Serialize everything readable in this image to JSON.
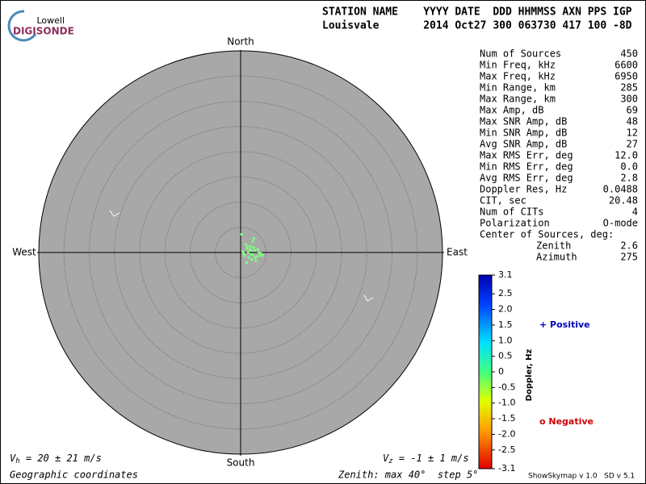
{
  "logo": {
    "top": "Lowell",
    "bottom": "DIGISONDE"
  },
  "header": {
    "columns": "STATION NAME    YYYY DATE  DDD HHMMSS AXN PPS IGP",
    "values": "Louisvale       2014 Oct27 300 063730 417 100 -8D"
  },
  "chart_data": {
    "type": "scatter",
    "directions": {
      "north": "North",
      "south": "South",
      "west": "West",
      "east": "East"
    },
    "zenith_max": 40,
    "ring_step": 5,
    "color": "#80ff80",
    "x": [
      0.4,
      0.8,
      1.2,
      1.6,
      2.0,
      2.4,
      2.8,
      3.2,
      3.6,
      4.0,
      1.0,
      1.5,
      2.2,
      2.6,
      3.0,
      1.8,
      2.4,
      3.4,
      0.6,
      2.0,
      2.8,
      1.4,
      3.8,
      2.2,
      0.2,
      4.4,
      2.6,
      1.2
    ],
    "y": [
      0.2,
      -0.6,
      0.8,
      -1.0,
      1.2,
      -0.4,
      0.4,
      -0.8,
      0.0,
      -0.2,
      1.6,
      0.0,
      -1.4,
      1.0,
      -1.6,
      0.6,
      2.2,
      0.6,
      -0.2,
      -0.4,
      -1.0,
      1.2,
      -0.6,
      0.4,
      3.6,
      -0.6,
      2.8,
      -2.0
    ]
  },
  "stats": [
    [
      "Num of Sources",
      "450"
    ],
    [
      "Min Freq, kHz",
      "6600"
    ],
    [
      "Max Freq, kHz",
      "6950"
    ],
    [
      "Min Range, km",
      "285"
    ],
    [
      "Max Range, km",
      "300"
    ],
    [
      "Max Amp, dB",
      "69"
    ],
    [
      "Max SNR Amp, dB",
      "48"
    ],
    [
      "Min SNR Amp, dB",
      "12"
    ],
    [
      "Avg SNR Amp, dB",
      "27"
    ],
    [
      "Max RMS Err, deg",
      "12.0"
    ],
    [
      "Min RMS Err, deg",
      "0.0"
    ],
    [
      "Avg RMS Err, deg",
      "2.8"
    ],
    [
      "Doppler Res, Hz",
      "0.0488"
    ],
    [
      "CIT, sec",
      "20.48"
    ],
    [
      "Num of CITs",
      "4"
    ],
    [
      "Polarization",
      "O-mode"
    ]
  ],
  "center": {
    "title": "Center of Sources, deg:",
    "rows": [
      [
        "Zenith",
        "2.6"
      ],
      [
        "Azimuth",
        "275"
      ]
    ]
  },
  "colorbar": {
    "label": "Doppler, Hz",
    "lim": [
      -3.1,
      3.1
    ],
    "ticks": [
      3.1,
      2.5,
      {
        "value": 2,
        "label": "2.0"
      },
      1.5,
      {
        "value": 1,
        "label": "1.0"
      },
      0.5,
      0,
      -0.5,
      {
        "value": -1,
        "label": "-1.0"
      },
      -1.5,
      {
        "value": -2,
        "label": "-2.0"
      },
      -2.5,
      -3.1
    ]
  },
  "legend": {
    "positive": "+ Positive",
    "negative": "o Negative"
  },
  "footer": {
    "vh_sym": "V",
    "vh_sub": "h",
    "vh_text": " = 20 ± 21 m/s",
    "vz_sym": "V",
    "vz_sub": "z",
    "vz_text": " = -1 ± 1 m/s",
    "coords": "Geographic coordinates",
    "zenith": "Zenith: max 40°  step 5°",
    "version": "ShowSkymap v 1.0   SD v 5.1"
  }
}
